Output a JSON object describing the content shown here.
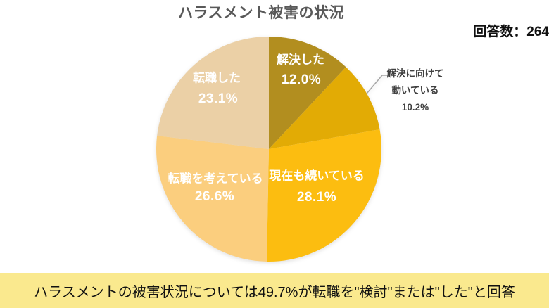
{
  "title": "ハラスメント被害の状況",
  "response_count": "回答数：264",
  "summary": "ハラスメントの被害状況については49.7%が転職を\"検討\"または\"した\"と回答",
  "colors": {
    "background": "#FFFFFF",
    "banner_bg": "#FAE98E",
    "title_text": "#595959",
    "inside_label_text": "#FFFFFF",
    "outside_label_text": "#404040",
    "leader_line": "#A6A6A6"
  },
  "chart_data": {
    "type": "pie",
    "title": "ハラスメント被害の状況",
    "legend_position": "none",
    "start_angle_deg": 0,
    "direction": "clockwise",
    "slices": [
      {
        "name": "解決した",
        "value": 12.0,
        "pct_text": "12.0%",
        "color": "#B28E1F",
        "label_inside": true
      },
      {
        "name": "解決に向けて動いている",
        "value": 10.2,
        "pct_text": "10.2%",
        "color": "#E2AB05",
        "label_inside": false,
        "label_lines": [
          "解決に向けて",
          "動いている"
        ]
      },
      {
        "name": "現在も続いている",
        "value": 28.1,
        "pct_text": "28.1%",
        "color": "#FCBD10",
        "label_inside": true
      },
      {
        "name": "転職を考えている",
        "value": 26.6,
        "pct_text": "26.6%",
        "color": "#FBCE7E",
        "label_inside": true
      },
      {
        "name": "転職した",
        "value": 23.1,
        "pct_text": "23.1%",
        "color": "#EBD0A6",
        "label_inside": true
      }
    ]
  }
}
